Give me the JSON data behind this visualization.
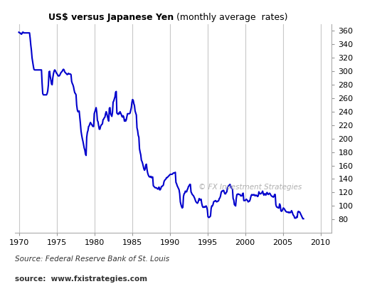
{
  "title_bold": "US$ versus Japanese Yen",
  "title_normal": " (monthly average  rates)",
  "ylim": [
    60,
    370
  ],
  "xlim": [
    1969.5,
    2011.5
  ],
  "yticks": [
    80,
    100,
    120,
    140,
    160,
    180,
    200,
    220,
    240,
    260,
    280,
    300,
    320,
    340,
    360
  ],
  "xticks": [
    1970,
    1975,
    1980,
    1985,
    1990,
    1995,
    2000,
    2005,
    2010
  ],
  "line_color": "#0000cc",
  "line_width": 1.5,
  "bg_color": "#ffffff",
  "grid_color": "#c8c8c8",
  "watermark": "© FX Investment Strategies",
  "source_text": "Source: Federal Reserve Bank of St. Louis",
  "source_url": "source:  www.fxistrategies.com",
  "rates": [
    358,
    357,
    357,
    356,
    355,
    356,
    358,
    358,
    357,
    357,
    357,
    357,
    357,
    357,
    357,
    357,
    357,
    357,
    349,
    339,
    331,
    320,
    314,
    308,
    303,
    302,
    302,
    302,
    302,
    302,
    302,
    302,
    302,
    302,
    302,
    302,
    302,
    282,
    267,
    265,
    265,
    265,
    265,
    265,
    265,
    267,
    271,
    280,
    299,
    300,
    292,
    287,
    281,
    280,
    290,
    296,
    300,
    302,
    301,
    299,
    297,
    296,
    294,
    293,
    293,
    294,
    296,
    298,
    299,
    300,
    302,
    303,
    302,
    299,
    298,
    297,
    296,
    295,
    296,
    297,
    296,
    296,
    296,
    295,
    285,
    282,
    280,
    277,
    272,
    268,
    267,
    265,
    250,
    243,
    240,
    240,
    241,
    232,
    222,
    211,
    205,
    200,
    196,
    191,
    186,
    183,
    177,
    175,
    202,
    209,
    212,
    218,
    219,
    222,
    224,
    222,
    221,
    219,
    218,
    218,
    237,
    240,
    243,
    246,
    239,
    227,
    225,
    219,
    214,
    214,
    218,
    220,
    221,
    222,
    228,
    229,
    231,
    232,
    237,
    240,
    237,
    233,
    229,
    226,
    245,
    246,
    237,
    235,
    233,
    239,
    254,
    256,
    259,
    262,
    269,
    270,
    238,
    237,
    236,
    238,
    237,
    240,
    238,
    236,
    233,
    232,
    234,
    232,
    226,
    228,
    226,
    228,
    233,
    237,
    237,
    237,
    237,
    238,
    242,
    246,
    254,
    258,
    257,
    252,
    249,
    241,
    238,
    235,
    216,
    212,
    205,
    202,
    185,
    180,
    176,
    168,
    166,
    163,
    159,
    155,
    153,
    155,
    161,
    162,
    154,
    149,
    146,
    144,
    143,
    143,
    144,
    142,
    143,
    143,
    130,
    129,
    128,
    127,
    127,
    127,
    126,
    125,
    126,
    128,
    124,
    124,
    126,
    129,
    129,
    130,
    131,
    136,
    138,
    139,
    140,
    142,
    142,
    143,
    144,
    145,
    146,
    147,
    147,
    147,
    147,
    148,
    149,
    149,
    149,
    150,
    135,
    133,
    130,
    128,
    126,
    124,
    118,
    106,
    102,
    99,
    97,
    98,
    114,
    118,
    119,
    122,
    121,
    121,
    124,
    126,
    129,
    130,
    132,
    132,
    121,
    119,
    117,
    116,
    115,
    113,
    111,
    108,
    106,
    105,
    104,
    105,
    108,
    111,
    109,
    109,
    110,
    104,
    100,
    98,
    98,
    99,
    98,
    99,
    100,
    98,
    94,
    84,
    83,
    83,
    84,
    85,
    96,
    100,
    100,
    102,
    106,
    107,
    107,
    108,
    107,
    106,
    107,
    107,
    108,
    111,
    112,
    115,
    120,
    122,
    122,
    123,
    123,
    120,
    118,
    118,
    120,
    121,
    127,
    129,
    130,
    131,
    132,
    130,
    127,
    126,
    125,
    111,
    109,
    102,
    101,
    100,
    111,
    117,
    117,
    118,
    117,
    117,
    117,
    115,
    115,
    115,
    118,
    119,
    108,
    108,
    108,
    109,
    110,
    109,
    108,
    106,
    107,
    107,
    109,
    113,
    116,
    117,
    116,
    116,
    117,
    116,
    115,
    116,
    116,
    115,
    114,
    115,
    121,
    119,
    118,
    118,
    119,
    120,
    122,
    118,
    116,
    118,
    118,
    116,
    118,
    120,
    118,
    117,
    118,
    119,
    118,
    116,
    115,
    114,
    114,
    113,
    114,
    117,
    117,
    102,
    99,
    98,
    98,
    97,
    97,
    103,
    101,
    93,
    92,
    93,
    95,
    97,
    96,
    95,
    93,
    92,
    91,
    91,
    91,
    90,
    91,
    90,
    90,
    91,
    93,
    91,
    88,
    86,
    85,
    82,
    82,
    82,
    84,
    83,
    91,
    92,
    91,
    91,
    89,
    87,
    85,
    83,
    81,
    81
  ]
}
